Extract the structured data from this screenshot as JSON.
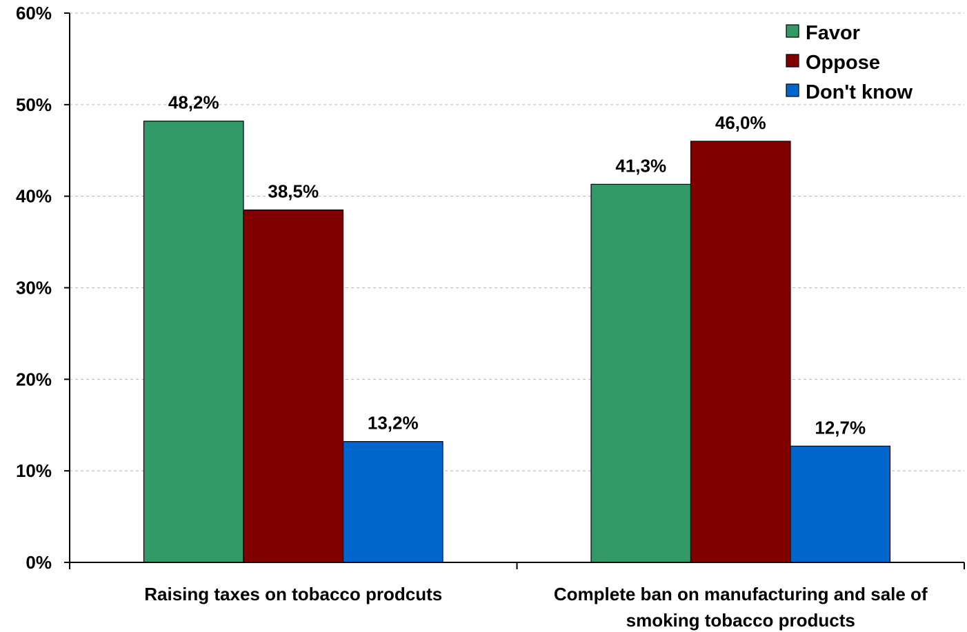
{
  "chart_data": {
    "type": "bar",
    "title": "",
    "xlabel": "",
    "ylabel": "",
    "ylim": [
      0,
      60
    ],
    "y_ticks": [
      "0%",
      "10%",
      "20%",
      "30%",
      "40%",
      "50%",
      "60%"
    ],
    "y_tick_values": [
      0,
      10,
      20,
      30,
      40,
      50,
      60
    ],
    "grid": "horizontal dashed",
    "legend_position": "top-right",
    "categories": [
      [
        "Raising taxes on tobacco prodcuts"
      ],
      [
        "Complete ban on manufacturing and sale of",
        "smoking tobacco products"
      ]
    ],
    "series": [
      {
        "name": "Favor",
        "color": "#339966",
        "values": [
          48.2,
          41.3
        ],
        "labels": [
          "48,2%",
          "41,3%"
        ]
      },
      {
        "name": "Oppose",
        "color": "#800000",
        "values": [
          38.5,
          46.0
        ],
        "labels": [
          "38,5%",
          "46,0%"
        ]
      },
      {
        "name": "Don't know",
        "color": "#0066CC",
        "values": [
          13.2,
          12.7
        ],
        "labels": [
          "13,2%",
          "12,7%"
        ]
      }
    ]
  }
}
